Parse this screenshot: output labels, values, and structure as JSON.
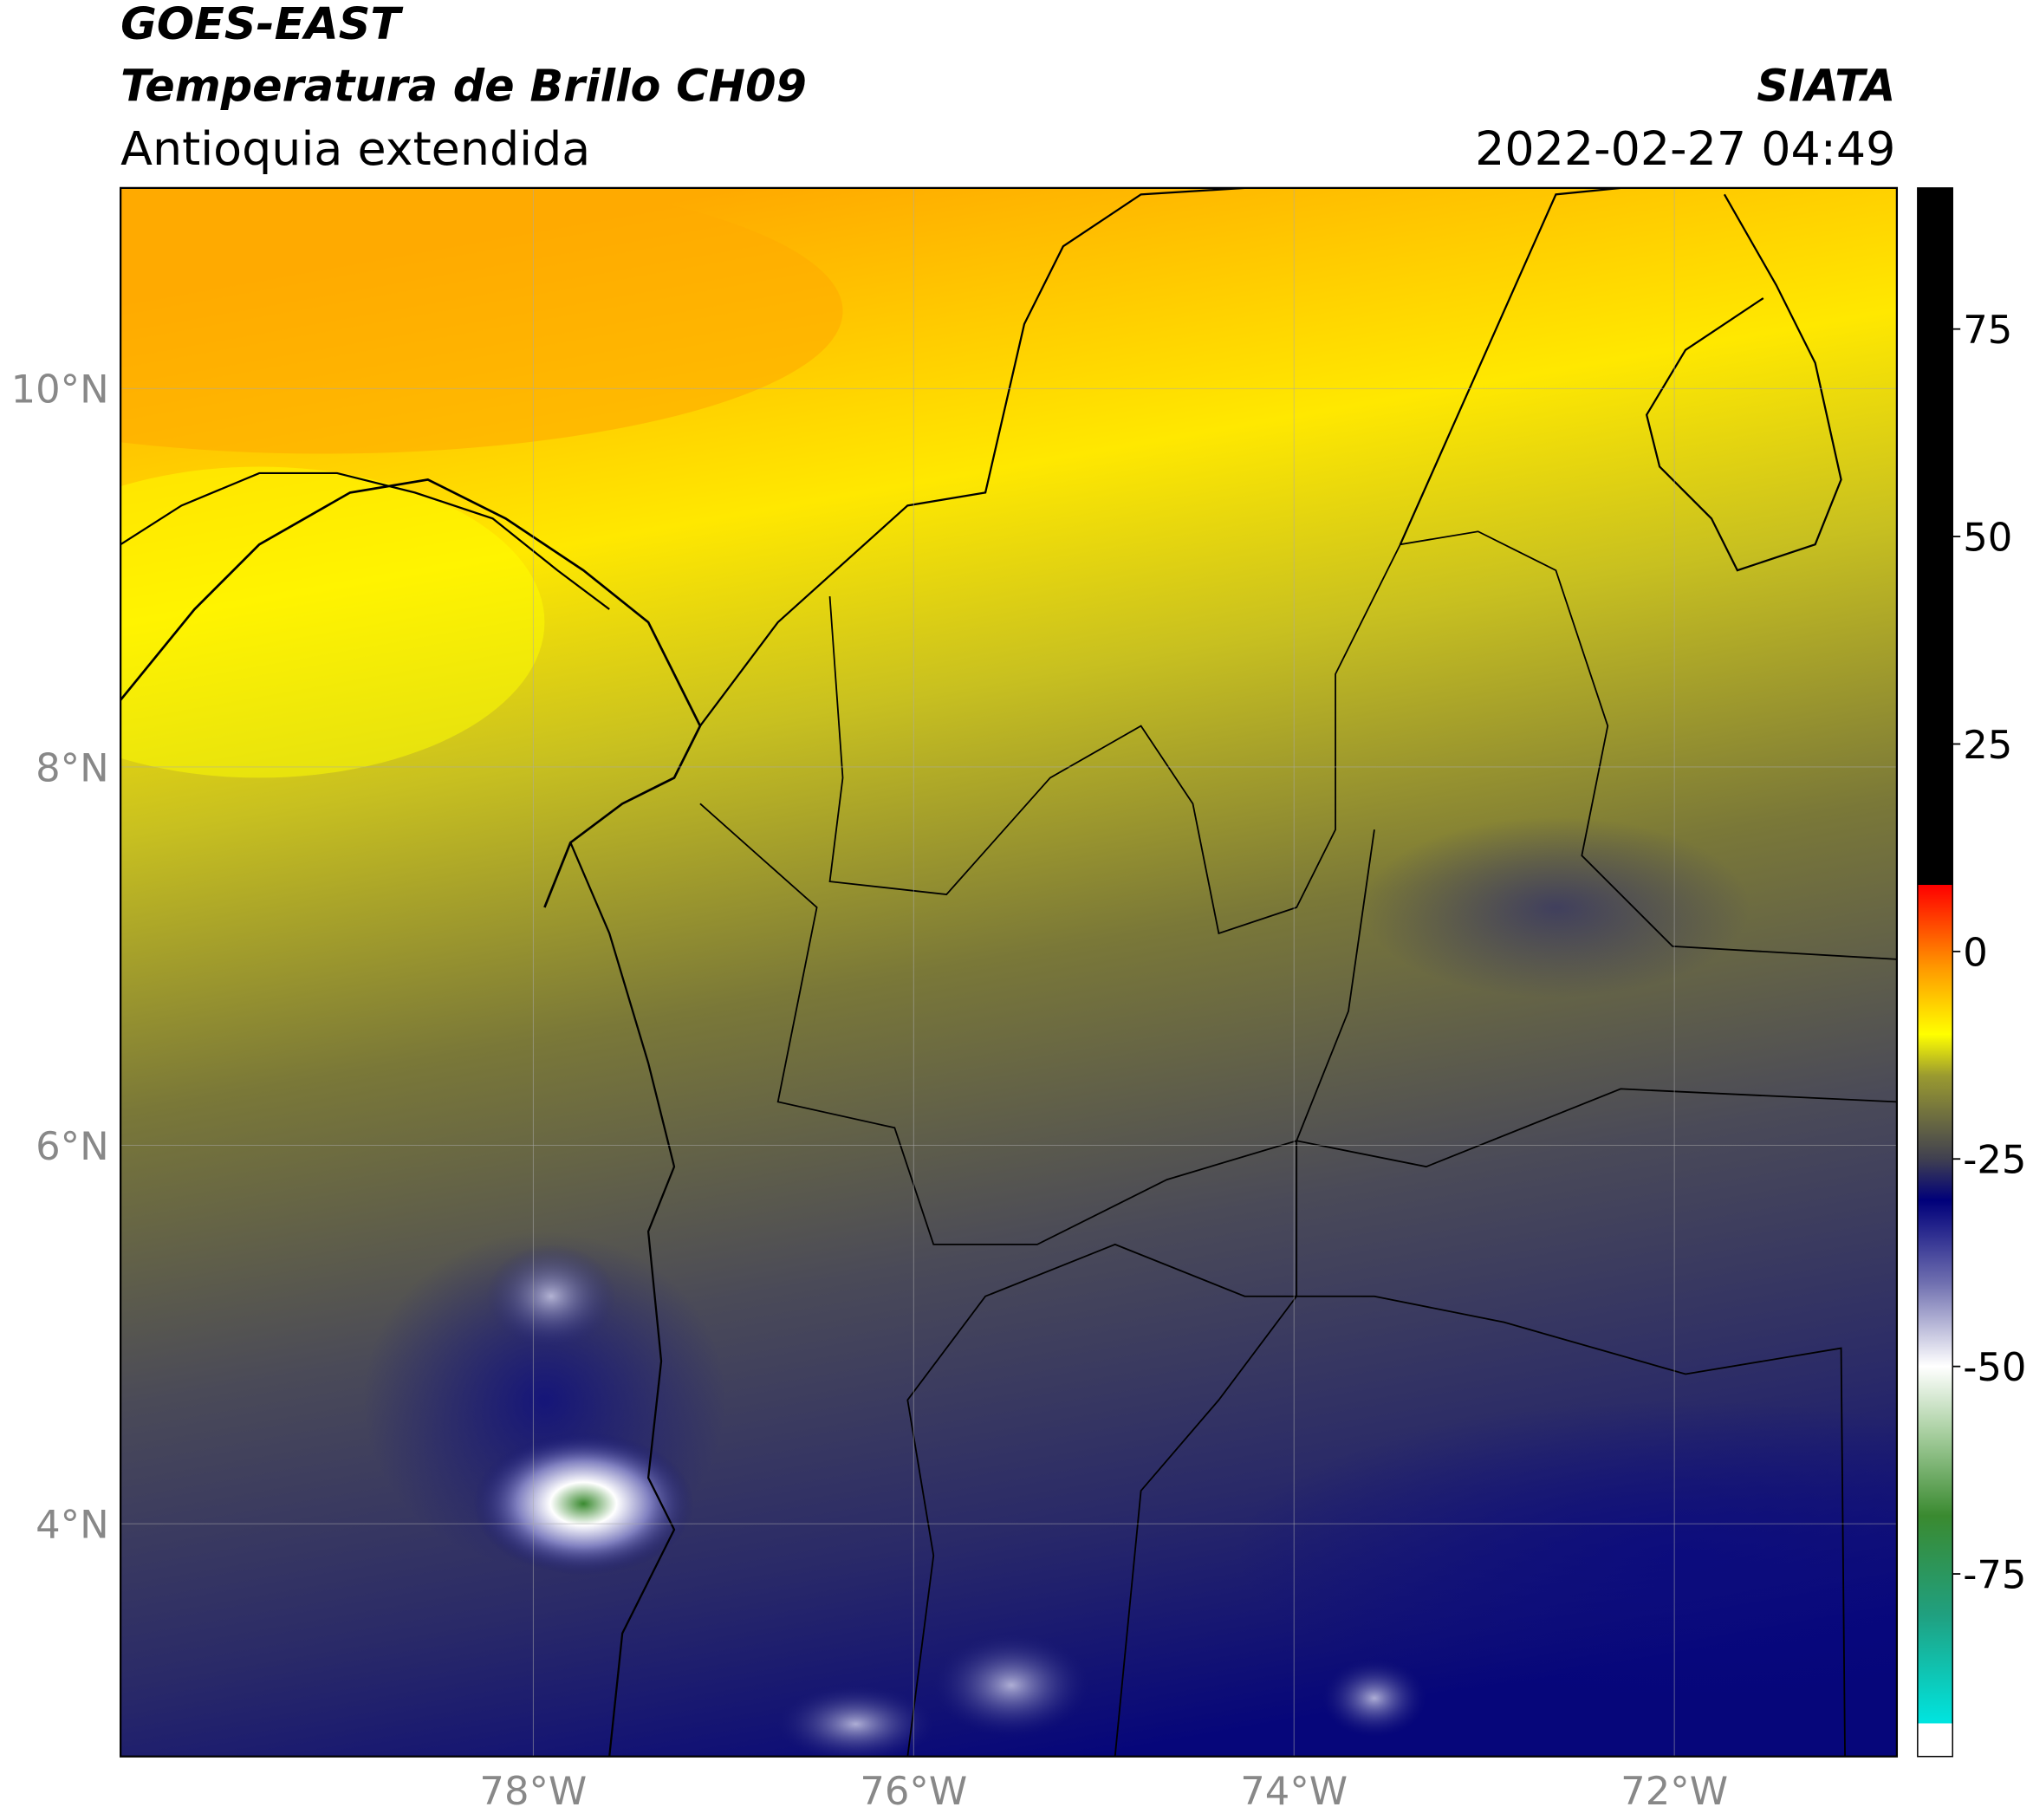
{
  "header": {
    "title": "GOES-EAST",
    "subtitle": "Temperatura de Brillo CH09",
    "region": "Antioquia extendida",
    "source": "SIATA",
    "datetime": "2022-02-27 04:49"
  },
  "map": {
    "xlim": [
      -80.17,
      -70.83
    ],
    "ylim": [
      2.77,
      11.06
    ],
    "xticks": [
      {
        "value": -78,
        "label": "78°W"
      },
      {
        "value": -76,
        "label": "76°W"
      },
      {
        "value": -74,
        "label": "74°W"
      },
      {
        "value": -72,
        "label": "72°W"
      }
    ],
    "yticks": [
      {
        "value": 4,
        "label": "4°N"
      },
      {
        "value": 6,
        "label": "6°N"
      },
      {
        "value": 8,
        "label": "8°N"
      },
      {
        "value": 10,
        "label": "10°N"
      }
    ],
    "grid": true
  },
  "colorbar": {
    "clim": [
      -97,
      92
    ],
    "ticks": [
      -75,
      -50,
      -25,
      0,
      25,
      50,
      75
    ],
    "stops": [
      {
        "value": -97,
        "color": "#ffffff"
      },
      {
        "value": -93,
        "color": "#ffffff"
      },
      {
        "value": -93,
        "color": "#00e5e0"
      },
      {
        "value": -80,
        "color": "#20a080"
      },
      {
        "value": -68,
        "color": "#3a8a30"
      },
      {
        "value": -58,
        "color": "#a8cfa0"
      },
      {
        "value": -50,
        "color": "#ffffff"
      },
      {
        "value": -40,
        "color": "#7070b0"
      },
      {
        "value": -30,
        "color": "#00007a"
      },
      {
        "value": -25,
        "color": "#404050"
      },
      {
        "value": -15,
        "color": "#9a9a30"
      },
      {
        "value": -10,
        "color": "#ffff00"
      },
      {
        "value": -2,
        "color": "#ff9900"
      },
      {
        "value": 8,
        "color": "#ff0000"
      },
      {
        "value": 8,
        "color": "#000000"
      },
      {
        "value": 92,
        "color": "#000000"
      }
    ]
  }
}
